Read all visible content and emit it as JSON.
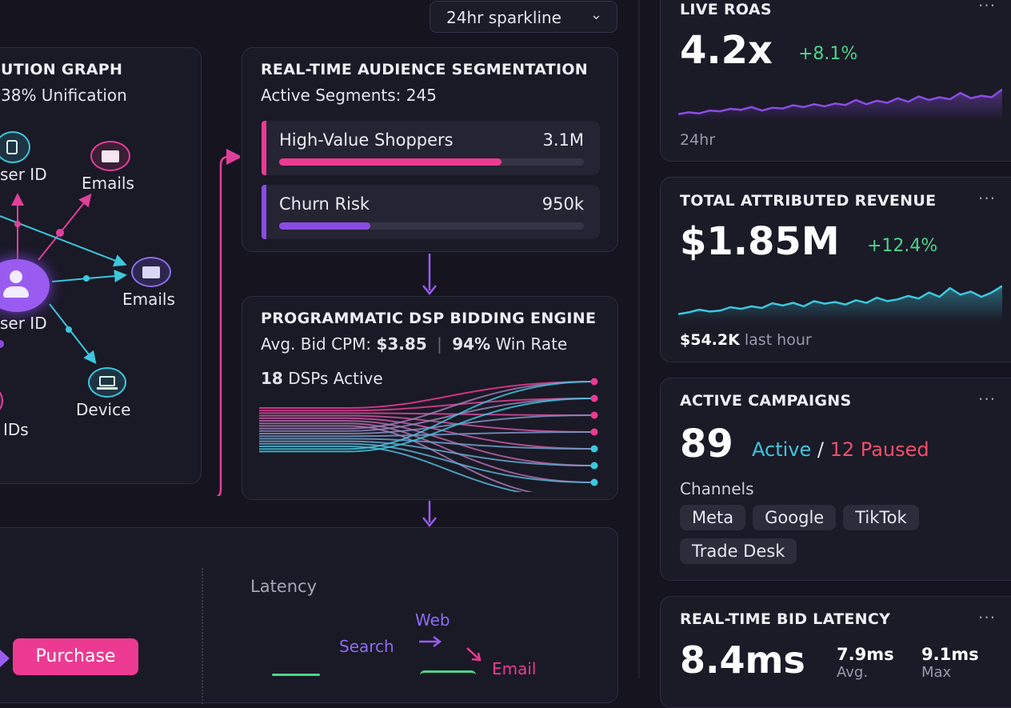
{
  "topbar": {
    "sparkline_select": "24hr sparkline"
  },
  "identity_graph": {
    "title": "UTION GRAPH",
    "subtitle": "38% Unification",
    "nodes": {
      "user_id_top": "ser ID",
      "emails_top": "Emails",
      "emails_right": "Emails",
      "user_id_center": "ser ID",
      "device": "Device",
      "ids": "IDs"
    }
  },
  "segmentation": {
    "title": "REAL-TIME AUDIENCE SEGMENTATION",
    "subtitle": "Active Segments: 245",
    "segments": [
      {
        "name": "High-Value Shoppers",
        "value": "3.1M",
        "fill": 0.73,
        "color": "#ec3a92"
      },
      {
        "name": "Churn Risk",
        "value": "950k",
        "fill": 0.3,
        "color": "#8b4ce6"
      }
    ]
  },
  "dsp": {
    "title": "PROGRAMMATIC DSP BIDDING ENGINE",
    "cpm_label": "Avg. Bid CPM:",
    "cpm_value": "$3.85",
    "win_value": "94%",
    "win_label": "Win Rate",
    "dsps_count": "18",
    "dsps_label": "DSPs Active"
  },
  "journey": {
    "latency_label": "Latency",
    "web": "Web",
    "search": "Search",
    "email": "Email",
    "purchase_button": "Purchase"
  },
  "live_roas": {
    "title": "LIVE ROAS",
    "value": "4.2x",
    "change": "+8.1%",
    "footer": "24hr",
    "spark": [
      0.1,
      0.15,
      0.12,
      0.2,
      0.18,
      0.25,
      0.22,
      0.3,
      0.2,
      0.28,
      0.26,
      0.35,
      0.3,
      0.38,
      0.32,
      0.4,
      0.36,
      0.5,
      0.38,
      0.48,
      0.42,
      0.55,
      0.45,
      0.6,
      0.5,
      0.58,
      0.52,
      0.7,
      0.55,
      0.62,
      0.58,
      0.8
    ]
  },
  "revenue": {
    "title": "TOTAL ATTRIBUTED REVENUE",
    "value": "$1.85M",
    "change": "+12.4%",
    "footer_value": "$54.2K",
    "footer_label": "last hour",
    "spark": [
      0.1,
      0.14,
      0.2,
      0.16,
      0.18,
      0.26,
      0.22,
      0.28,
      0.24,
      0.35,
      0.3,
      0.36,
      0.28,
      0.4,
      0.34,
      0.38,
      0.32,
      0.42,
      0.36,
      0.48,
      0.4,
      0.44,
      0.52,
      0.46,
      0.6,
      0.5,
      0.7,
      0.55,
      0.62,
      0.5,
      0.6,
      0.75
    ]
  },
  "campaigns": {
    "title": "ACTIVE CAMPAIGNS",
    "count": "89",
    "active_label": "Active",
    "separator": "/",
    "paused_label": "12 Paused",
    "channels_label": "Channels",
    "channels": [
      "Meta",
      "Google",
      "TikTok",
      "Trade Desk"
    ]
  },
  "latency": {
    "title": "REAL-TIME BID LATENCY",
    "value": "8.4ms",
    "avg_value": "7.9ms",
    "avg_label": "Avg.",
    "max_value": "9.1ms",
    "max_label": "Max"
  },
  "colors": {
    "pink": "#ec3a92",
    "purple": "#8b4ce6",
    "cyan": "#3cc7dd",
    "green": "#4cd58a",
    "red": "#f0506a"
  }
}
